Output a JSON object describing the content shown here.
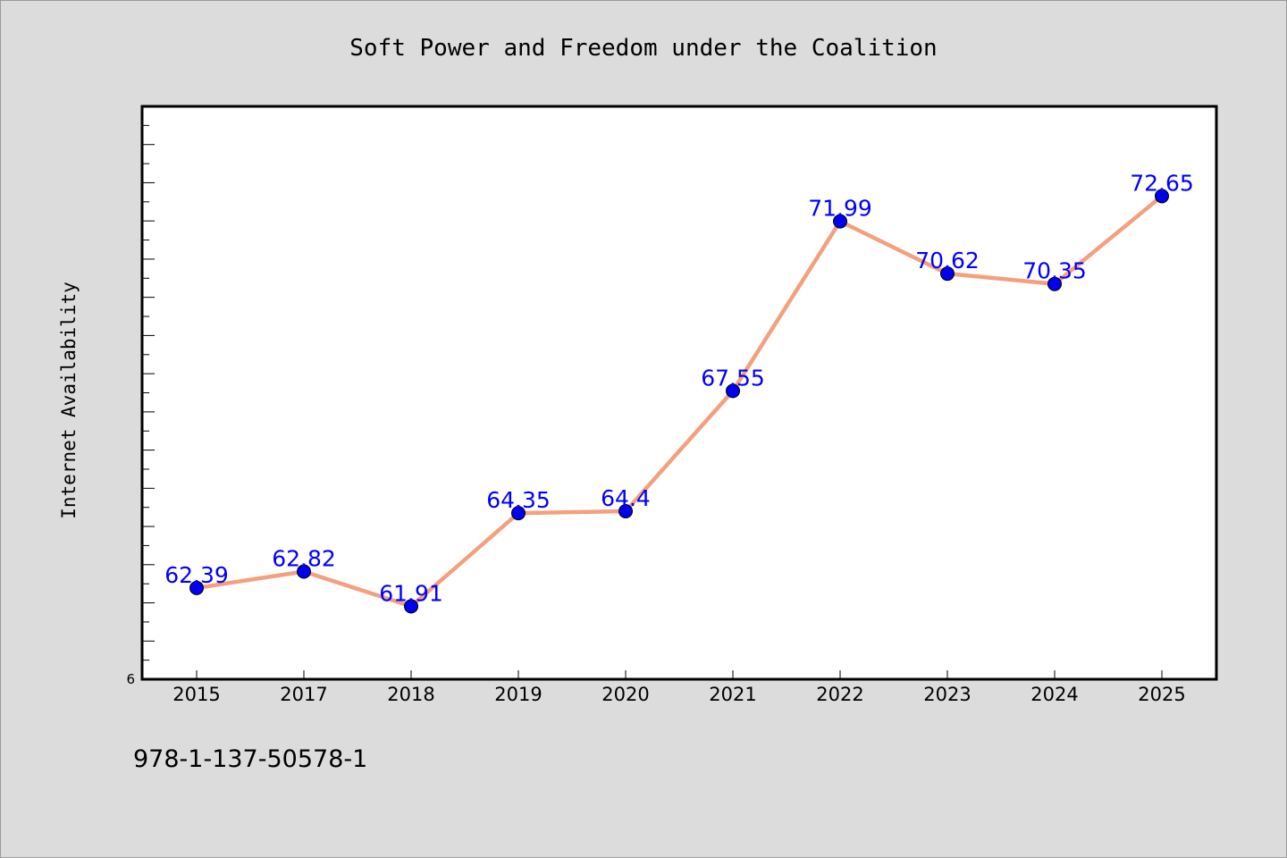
{
  "chart_data": {
    "type": "line",
    "title": "Soft Power and Freedom under the Coalition",
    "xlabel": "",
    "ylabel": "Internet Availability",
    "categories": [
      "2015",
      "2017",
      "2018",
      "2019",
      "2020",
      "2021",
      "2022",
      "2023",
      "2024",
      "2025"
    ],
    "series": [
      {
        "values": [
          62.39,
          62.82,
          61.91,
          64.35,
          64.4,
          67.55,
          71.99,
          70.62,
          70.35,
          72.65
        ],
        "data_labels": [
          "62.39",
          "62.82",
          "61.91",
          "64.35",
          "64.4",
          "67.55",
          "71.99",
          "70.62",
          "70.35",
          "72.65"
        ],
        "line_color": "#f4a07e",
        "marker_color": "#0000ee"
      }
    ],
    "ylim": [
      60,
      75
    ],
    "y_tick_labels": [
      "6"
    ],
    "grid": false,
    "legend": "none"
  },
  "footer": {
    "isbn": "978-1-137-50578-1"
  },
  "colors": {
    "background": "#dcdcdc",
    "plot_background": "#ffffff",
    "label_color": "#0000ff"
  }
}
